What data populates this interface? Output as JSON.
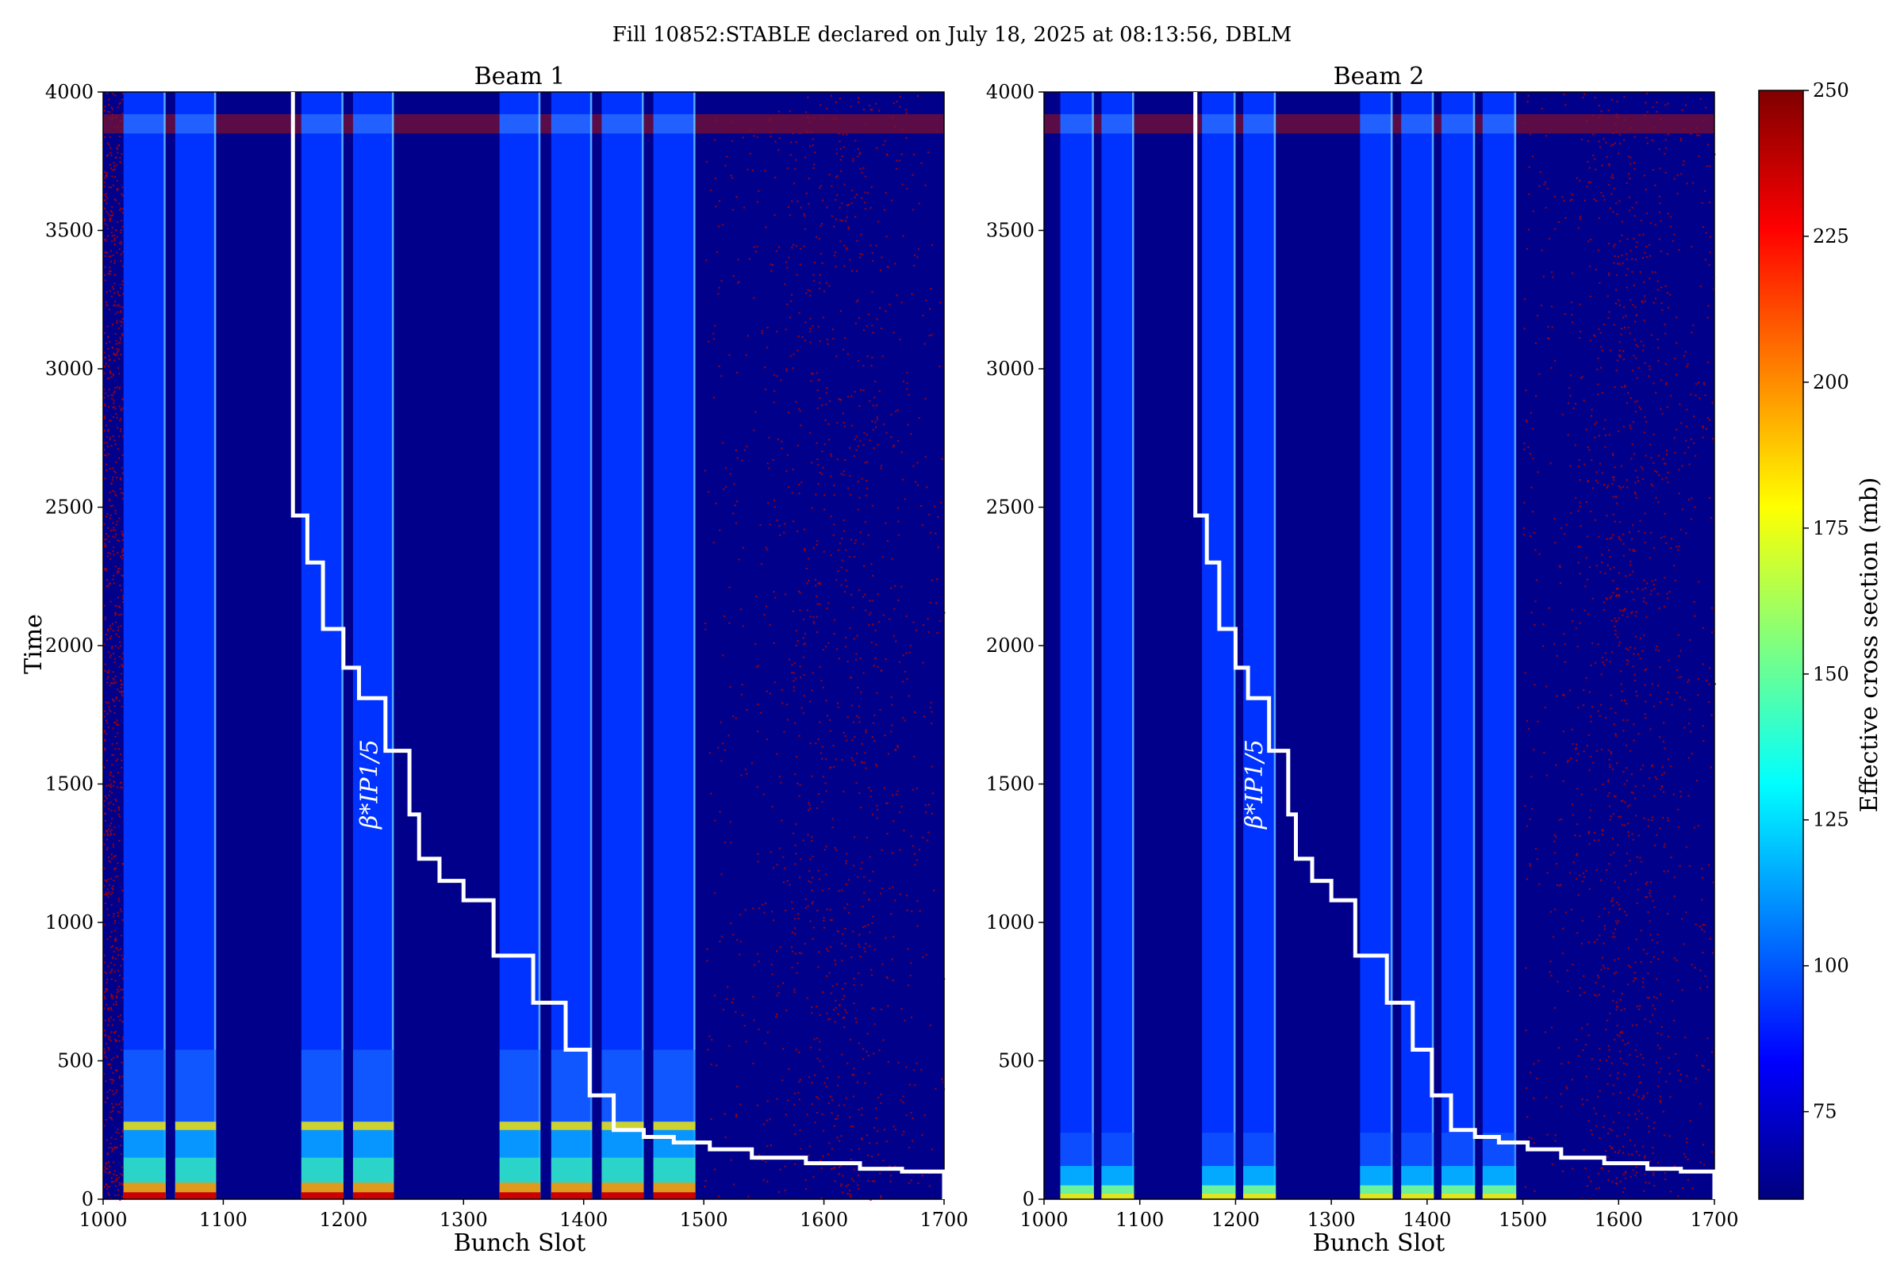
{
  "figure": {
    "suptitle": "Fill 10852:STABLE declared on July 18, 2025 at 08:13:56, DBLM"
  },
  "colors": {
    "background_fill": "#00008b",
    "train_fill": "#0033ff",
    "noise_red": "#b00000",
    "step_line": "#ffffff",
    "colormap": [
      "#00007f",
      "#0000ff",
      "#007fff",
      "#00ffff",
      "#7fff7f",
      "#ffff00",
      "#ff7f00",
      "#ff0000",
      "#7f0000"
    ]
  },
  "chart_data": [
    {
      "type": "heatmap",
      "title": "Beam 1",
      "xlabel": "Bunch Slot",
      "ylabel": "Time",
      "xlim": [
        1000,
        1700
      ],
      "ylim": [
        0,
        4000
      ],
      "xticks": [
        1000,
        1100,
        1200,
        1300,
        1400,
        1500,
        1600,
        1700
      ],
      "yticks": [
        0,
        500,
        1000,
        1500,
        2000,
        2500,
        3000,
        3500,
        4000
      ],
      "grid": false,
      "bunch_trains": [
        [
          1017,
          1052
        ],
        [
          1060,
          1094
        ],
        [
          1165,
          1200
        ],
        [
          1208,
          1242
        ],
        [
          1330,
          1364
        ],
        [
          1373,
          1407
        ],
        [
          1415,
          1450
        ],
        [
          1458,
          1493
        ]
      ],
      "high_cross_section_band_time": [
        3850,
        3920
      ],
      "step_annotation": "β*IP1/5",
      "step_line": {
        "x": [
          1158,
          1158,
          1170,
          1170,
          1183,
          1183,
          1200,
          1200,
          1213,
          1213,
          1235,
          1235,
          1255,
          1255,
          1263,
          1263,
          1280,
          1280,
          1300,
          1300,
          1325,
          1325,
          1358,
          1358,
          1385,
          1385,
          1405,
          1405,
          1425,
          1425,
          1450,
          1450,
          1475,
          1475,
          1505,
          1505,
          1540,
          1540,
          1585,
          1585,
          1630,
          1630,
          1665,
          1665,
          1700,
          1700
        ],
        "y": [
          4000,
          2470,
          2470,
          2300,
          2300,
          2060,
          2060,
          1920,
          1920,
          1810,
          1810,
          1620,
          1620,
          1390,
          1390,
          1230,
          1230,
          1150,
          1150,
          1080,
          1080,
          880,
          880,
          710,
          710,
          540,
          540,
          375,
          375,
          250,
          250,
          225,
          225,
          205,
          205,
          180,
          180,
          150,
          150,
          130,
          130,
          110,
          110,
          100,
          100,
          0
        ]
      }
    },
    {
      "type": "heatmap",
      "title": "Beam 2",
      "xlabel": "Bunch Slot",
      "ylabel": "",
      "xlim": [
        1000,
        1700
      ],
      "ylim": [
        0,
        4000
      ],
      "xticks": [
        1000,
        1100,
        1200,
        1300,
        1400,
        1500,
        1600,
        1700
      ],
      "yticks": [
        0,
        500,
        1000,
        1500,
        2000,
        2500,
        3000,
        3500,
        4000
      ],
      "grid": false,
      "bunch_trains": [
        [
          1017,
          1052
        ],
        [
          1060,
          1094
        ],
        [
          1165,
          1200
        ],
        [
          1208,
          1242
        ],
        [
          1330,
          1364
        ],
        [
          1373,
          1407
        ],
        [
          1415,
          1450
        ],
        [
          1458,
          1493
        ]
      ],
      "high_cross_section_band_time": [
        3850,
        3920
      ],
      "step_annotation": "β*IP1/5",
      "step_line": {
        "x": [
          1158,
          1158,
          1170,
          1170,
          1183,
          1183,
          1200,
          1200,
          1213,
          1213,
          1235,
          1235,
          1255,
          1255,
          1263,
          1263,
          1280,
          1280,
          1300,
          1300,
          1325,
          1325,
          1358,
          1358,
          1385,
          1385,
          1405,
          1405,
          1425,
          1425,
          1450,
          1450,
          1475,
          1475,
          1505,
          1505,
          1540,
          1540,
          1585,
          1585,
          1630,
          1630,
          1665,
          1665,
          1700,
          1700
        ],
        "y": [
          4000,
          2470,
          2470,
          2300,
          2300,
          2060,
          2060,
          1920,
          1920,
          1810,
          1810,
          1620,
          1620,
          1390,
          1390,
          1230,
          1230,
          1150,
          1150,
          1080,
          1080,
          880,
          880,
          710,
          710,
          540,
          540,
          375,
          375,
          250,
          250,
          225,
          225,
          205,
          205,
          180,
          180,
          150,
          150,
          130,
          130,
          110,
          110,
          100,
          100,
          0
        ]
      }
    }
  ],
  "colorbar": {
    "label": "Effective cross section (mb)",
    "range": [
      60,
      250
    ],
    "ticks": [
      75,
      100,
      125,
      150,
      175,
      200,
      225,
      250
    ]
  }
}
